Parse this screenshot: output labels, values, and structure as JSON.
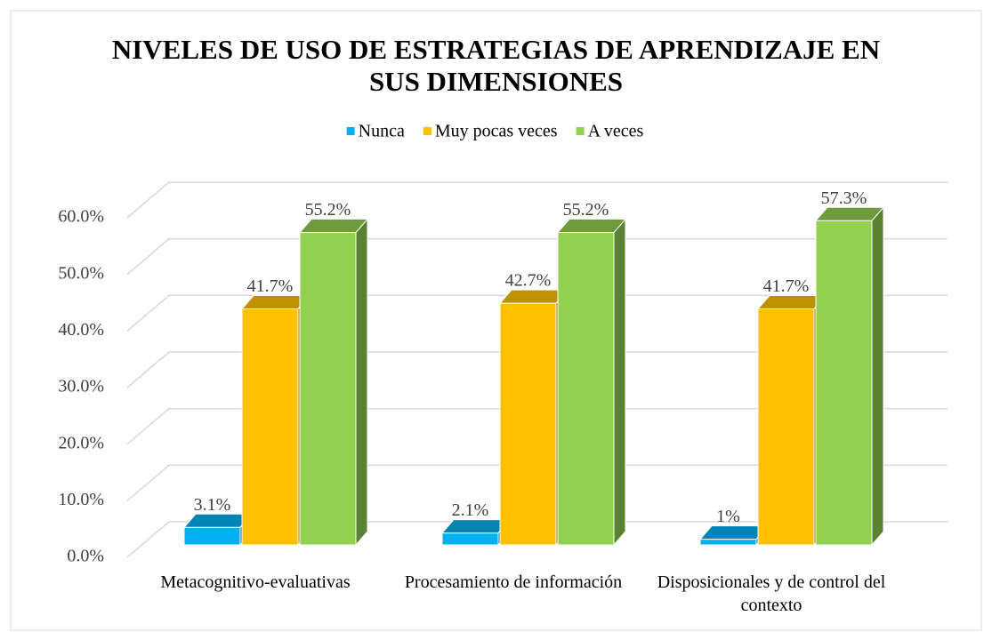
{
  "chart_data": {
    "type": "bar3d",
    "title": "NIVELES DE USO DE ESTRATEGIAS DE APRENDIZAJE EN SUS DIMENSIONES",
    "categories": [
      "Metacognitivo-evaluativas",
      "Procesamiento de información",
      "Disposicionales y de control del contexto"
    ],
    "series": [
      {
        "name": "Nunca",
        "color": "#00b0f0",
        "values": [
          3.1,
          2.1,
          1
        ],
        "value_labels": [
          "3.1%",
          "2.1%",
          "1%"
        ]
      },
      {
        "name": "Muy pocas veces",
        "color": "#ffc000",
        "values": [
          41.7,
          42.7,
          41.7
        ],
        "value_labels": [
          "41.7%",
          "42.7%",
          "41.7%"
        ]
      },
      {
        "name": "A veces",
        "color": "#92d050",
        "values": [
          55.2,
          55.2,
          57.3
        ],
        "value_labels": [
          "55.2%",
          "55.2%",
          "57.3%"
        ]
      }
    ],
    "ylim": [
      0,
      60
    ],
    "yticks": [
      {
        "value": 0,
        "label": "0.0%"
      },
      {
        "value": 10,
        "label": "10.0%"
      },
      {
        "value": 20,
        "label": "20.0%"
      },
      {
        "value": 30,
        "label": "30.0%"
      },
      {
        "value": 40,
        "label": "40.0%"
      },
      {
        "value": 50,
        "label": "50.0%"
      },
      {
        "value": 60,
        "label": "60.0%"
      }
    ],
    "grid": true,
    "legend": "top"
  }
}
